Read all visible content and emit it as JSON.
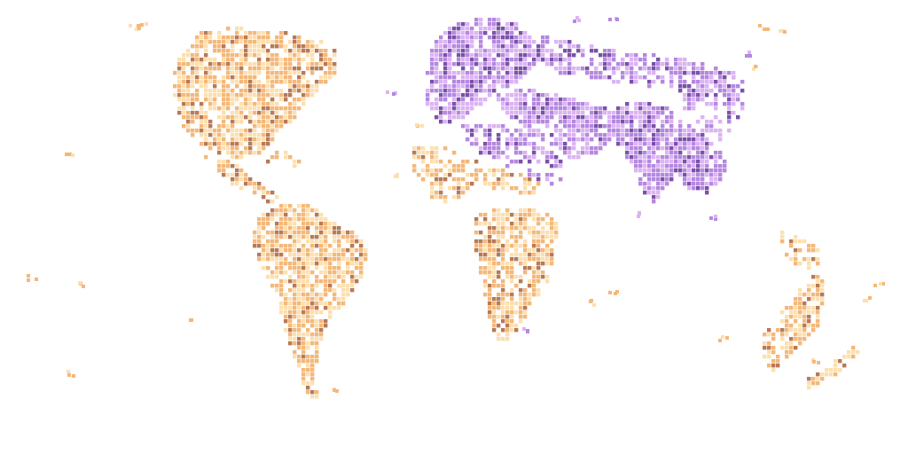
{
  "map": {
    "type": "choropleth-grid",
    "background": "#ffffff",
    "categories": [
      {
        "key": "americas-africa-oceania",
        "color_light": "#fde0b0",
        "color_mid": "#f4b87a",
        "color_dark": "#b67a5a"
      },
      {
        "key": "eurasia",
        "color_light": "#dcb4f4",
        "color_mid": "#b588e0",
        "color_dark": "#7a52a8"
      }
    ]
  }
}
